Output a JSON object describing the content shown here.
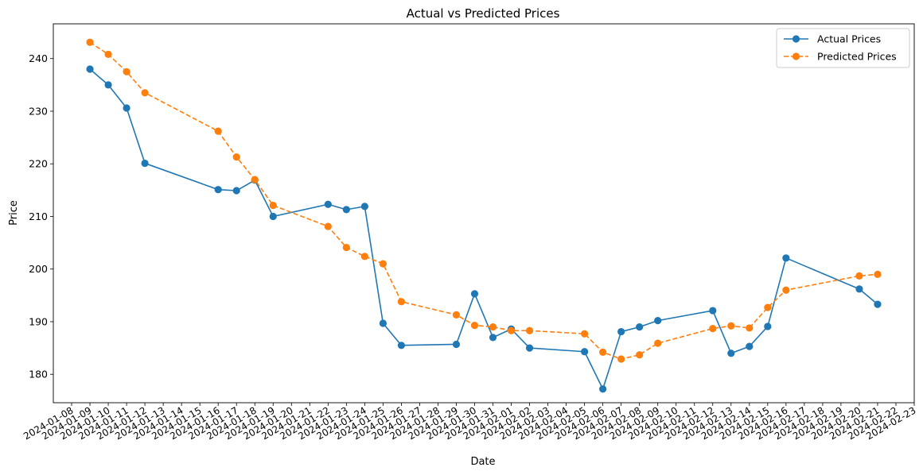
{
  "chart_data": {
    "type": "line",
    "title": "Actual vs Predicted Prices",
    "xlabel": "Date",
    "ylabel": "Price",
    "xlim": [
      "2024-01-07",
      "2024-02-23"
    ],
    "ylim": [
      174.6,
      246.6
    ],
    "x_ticks": [
      "2024-01-08",
      "2024-01-09",
      "2024-01-10",
      "2024-01-11",
      "2024-01-12",
      "2024-01-13",
      "2024-01-14",
      "2024-01-15",
      "2024-01-16",
      "2024-01-17",
      "2024-01-18",
      "2024-01-19",
      "2024-01-20",
      "2024-01-21",
      "2024-01-22",
      "2024-01-23",
      "2024-01-24",
      "2024-01-25",
      "2024-01-26",
      "2024-01-27",
      "2024-01-28",
      "2024-01-29",
      "2024-01-30",
      "2024-01-31",
      "2024-02-01",
      "2024-02-02",
      "2024-02-03",
      "2024-02-04",
      "2024-02-05",
      "2024-02-06",
      "2024-02-07",
      "2024-02-08",
      "2024-02-09",
      "2024-02-10",
      "2024-02-11",
      "2024-02-12",
      "2024-02-13",
      "2024-02-14",
      "2024-02-15",
      "2024-02-16",
      "2024-02-17",
      "2024-02-18",
      "2024-02-19",
      "2024-02-20",
      "2024-02-21",
      "2024-02-22",
      "2024-02-23"
    ],
    "y_ticks": [
      180,
      190,
      200,
      210,
      220,
      230,
      240
    ],
    "grid": false,
    "legend_position": "top-right",
    "series": [
      {
        "name": "Actual Prices",
        "color": "#1f77b4",
        "line_style": "solid",
        "marker": "circle",
        "x": [
          "2024-01-09",
          "2024-01-10",
          "2024-01-11",
          "2024-01-12",
          "2024-01-16",
          "2024-01-17",
          "2024-01-18",
          "2024-01-19",
          "2024-01-22",
          "2024-01-23",
          "2024-01-24",
          "2024-01-25",
          "2024-01-26",
          "2024-01-29",
          "2024-01-30",
          "2024-01-31",
          "2024-02-01",
          "2024-02-02",
          "2024-02-05",
          "2024-02-06",
          "2024-02-07",
          "2024-02-08",
          "2024-02-09",
          "2024-02-12",
          "2024-02-13",
          "2024-02-14",
          "2024-02-15",
          "2024-02-16",
          "2024-02-20",
          "2024-02-21"
        ],
        "values": [
          238.0,
          235.0,
          230.6,
          220.1,
          215.1,
          214.9,
          216.9,
          210.0,
          212.3,
          211.3,
          211.9,
          189.7,
          185.5,
          185.7,
          195.3,
          187.0,
          188.6,
          185.0,
          184.3,
          177.2,
          188.1,
          189.0,
          190.2,
          192.1,
          184.0,
          185.3,
          189.1,
          202.1,
          196.2,
          193.3
        ]
      },
      {
        "name": "Predicted Prices",
        "color": "#ff7f0e",
        "line_style": "dashed",
        "marker": "circle",
        "x": [
          "2024-01-09",
          "2024-01-10",
          "2024-01-11",
          "2024-01-12",
          "2024-01-16",
          "2024-01-17",
          "2024-01-18",
          "2024-01-19",
          "2024-01-22",
          "2024-01-23",
          "2024-01-24",
          "2024-01-25",
          "2024-01-26",
          "2024-01-29",
          "2024-01-30",
          "2024-01-31",
          "2024-02-01",
          "2024-02-02",
          "2024-02-05",
          "2024-02-06",
          "2024-02-07",
          "2024-02-08",
          "2024-02-09",
          "2024-02-12",
          "2024-02-13",
          "2024-02-14",
          "2024-02-15",
          "2024-02-16",
          "2024-02-20",
          "2024-02-21"
        ],
        "values": [
          243.1,
          240.8,
          237.5,
          233.5,
          226.2,
          221.3,
          217.0,
          212.1,
          208.1,
          204.1,
          202.4,
          201.0,
          193.8,
          191.3,
          189.3,
          189.0,
          188.3,
          188.3,
          187.7,
          184.2,
          182.9,
          183.7,
          185.9,
          188.7,
          189.2,
          188.8,
          192.7,
          196.0,
          198.7,
          199.0
        ]
      }
    ]
  }
}
